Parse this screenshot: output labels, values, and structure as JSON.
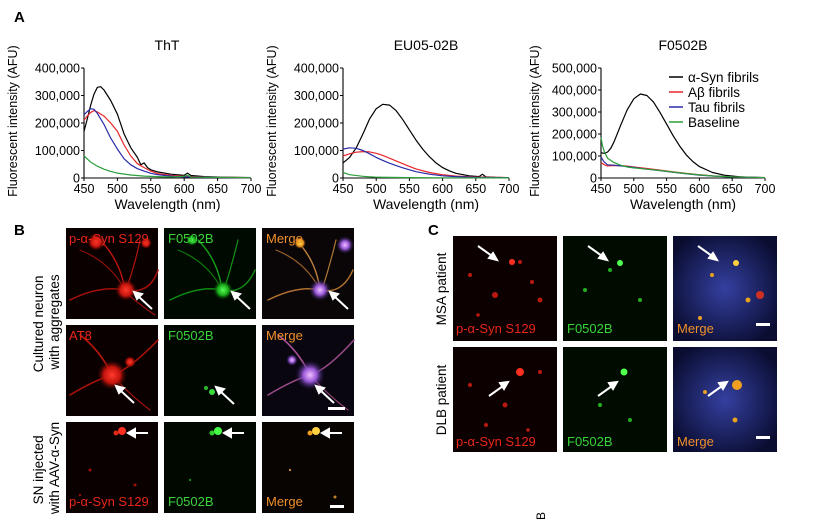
{
  "figure": {
    "panel_labels": {
      "a": "A",
      "b": "B",
      "c": "C",
      "stray": "B"
    },
    "legend": [
      {
        "label": "α-Syn fibrils",
        "color": "#000000"
      },
      {
        "label": "Aβ fibrils",
        "color": "#e8262a"
      },
      {
        "label": "Tau fibrils",
        "color": "#2a2aaa"
      },
      {
        "label": "Baseline",
        "color": "#2c9e3a"
      }
    ],
    "panel_b": {
      "row_label_1": "Cultured neuron with aggregates",
      "row_label_2": "SN injected with AAV-α-Syn",
      "rows": [
        [
          "p-α-Syn S129",
          "F0502B",
          "Merge"
        ],
        [
          "AT8",
          "F0502B",
          "Merge"
        ],
        [
          "p-α-Syn S129",
          "F0502B",
          "Merge"
        ]
      ]
    },
    "panel_c": {
      "rows": [
        {
          "patient": "MSA patient",
          "labels": [
            "p-α-Syn S129",
            "F0502B",
            "Merge"
          ]
        },
        {
          "patient": "DLB patient",
          "labels": [
            "p-α-Syn S129",
            "F0502B",
            "Merge"
          ]
        }
      ]
    }
  },
  "chart_data": [
    {
      "type": "line",
      "title": "ThT",
      "xlabel": "Wavelength (nm)",
      "ylabel": "Fluorescent intensity (AFU)",
      "xlim": [
        450,
        700
      ],
      "ylim": [
        0,
        400000
      ],
      "xticks": [
        450,
        500,
        550,
        600,
        650,
        700
      ],
      "yticks": [
        0,
        100000,
        200000,
        300000,
        400000
      ],
      "ytick_labels": [
        "0",
        "100,000",
        "200,000",
        "300,000",
        "400,000"
      ],
      "series": [
        {
          "name": "α-Syn fibrils",
          "color": "#000000",
          "points": [
            [
              450,
              170000
            ],
            [
              455,
              215000
            ],
            [
              460,
              265000
            ],
            [
              465,
              305000
            ],
            [
              470,
              330000
            ],
            [
              475,
              332000
            ],
            [
              480,
              320000
            ],
            [
              490,
              282000
            ],
            [
              500,
              232000
            ],
            [
              510,
              160000
            ],
            [
              520,
              110000
            ],
            [
              530,
              75000
            ],
            [
              535,
              48000
            ],
            [
              540,
              55000
            ],
            [
              545,
              38000
            ],
            [
              550,
              30000
            ],
            [
              560,
              22000
            ],
            [
              580,
              14000
            ],
            [
              600,
              10000
            ],
            [
              605,
              18000
            ],
            [
              610,
              9000
            ],
            [
              630,
              5000
            ],
            [
              660,
              3000
            ],
            [
              700,
              1500
            ]
          ]
        },
        {
          "name": "Aβ fibrils",
          "color": "#e8262a",
          "points": [
            [
              450,
              210000
            ],
            [
              455,
              226000
            ],
            [
              460,
              238000
            ],
            [
              465,
              245000
            ],
            [
              470,
              240000
            ],
            [
              480,
              225000
            ],
            [
              490,
              200000
            ],
            [
              500,
              170000
            ],
            [
              510,
              120000
            ],
            [
              520,
              80000
            ],
            [
              530,
              52000
            ],
            [
              540,
              38000
            ],
            [
              550,
              25000
            ],
            [
              560,
              16000
            ],
            [
              580,
              10000
            ],
            [
              600,
              6000
            ],
            [
              640,
              3000
            ],
            [
              700,
              1500
            ]
          ]
        },
        {
          "name": "Tau fibrils",
          "color": "#2a2aaa",
          "points": [
            [
              450,
              230000
            ],
            [
              455,
              242000
            ],
            [
              460,
              252000
            ],
            [
              465,
              250000
            ],
            [
              470,
              235000
            ],
            [
              480,
              195000
            ],
            [
              490,
              145000
            ],
            [
              500,
              105000
            ],
            [
              510,
              70000
            ],
            [
              520,
              48000
            ],
            [
              530,
              34000
            ],
            [
              540,
              25000
            ],
            [
              550,
              17000
            ],
            [
              560,
              12000
            ],
            [
              580,
              7000
            ],
            [
              600,
              4000
            ],
            [
              640,
              2000
            ],
            [
              700,
              1000
            ]
          ]
        },
        {
          "name": "Baseline",
          "color": "#2c9e3a",
          "points": [
            [
              450,
              80000
            ],
            [
              460,
              58000
            ],
            [
              470,
              43000
            ],
            [
              480,
              32000
            ],
            [
              490,
              24000
            ],
            [
              500,
              18000
            ],
            [
              520,
              11000
            ],
            [
              540,
              7000
            ],
            [
              560,
              5000
            ],
            [
              580,
              3500
            ],
            [
              600,
              6000
            ],
            [
              605,
              10000
            ],
            [
              610,
              3000
            ],
            [
              650,
              2000
            ],
            [
              700,
              1000
            ]
          ]
        }
      ]
    },
    {
      "type": "line",
      "title": "EU05-02B",
      "xlabel": "Wavelength (nm)",
      "ylabel": "Fluorescent intensity (AFU)",
      "xlim": [
        450,
        700
      ],
      "ylim": [
        0,
        400000
      ],
      "xticks": [
        450,
        500,
        550,
        600,
        650,
        700
      ],
      "yticks": [
        0,
        100000,
        200000,
        300000,
        400000
      ],
      "ytick_labels": [
        "0",
        "100,000",
        "200,000",
        "300,000",
        "400,000"
      ],
      "series": [
        {
          "name": "α-Syn fibrils",
          "color": "#000000",
          "points": [
            [
              450,
              55000
            ],
            [
              460,
              75000
            ],
            [
              470,
              110000
            ],
            [
              480,
              160000
            ],
            [
              490,
              215000
            ],
            [
              500,
              252000
            ],
            [
              510,
              268000
            ],
            [
              520,
              265000
            ],
            [
              530,
              245000
            ],
            [
              540,
              212000
            ],
            [
              550,
              175000
            ],
            [
              560,
              138000
            ],
            [
              570,
              105000
            ],
            [
              580,
              78000
            ],
            [
              590,
              55000
            ],
            [
              600,
              38000
            ],
            [
              610,
              26000
            ],
            [
              620,
              17000
            ],
            [
              640,
              8000
            ],
            [
              655,
              5000
            ],
            [
              660,
              14000
            ],
            [
              665,
              4000
            ],
            [
              680,
              2000
            ],
            [
              700,
              1000
            ]
          ]
        },
        {
          "name": "Aβ fibrils",
          "color": "#e8262a",
          "points": [
            [
              450,
              80000
            ],
            [
              460,
              88000
            ],
            [
              470,
              94000
            ],
            [
              480,
              96000
            ],
            [
              490,
              95000
            ],
            [
              500,
              90000
            ],
            [
              510,
              82000
            ],
            [
              520,
              72000
            ],
            [
              530,
              62000
            ],
            [
              540,
              52000
            ],
            [
              550,
              42000
            ],
            [
              560,
              33000
            ],
            [
              580,
              20000
            ],
            [
              600,
              12000
            ],
            [
              620,
              7000
            ],
            [
              650,
              3500
            ],
            [
              700,
              1500
            ]
          ]
        },
        {
          "name": "Tau fibrils",
          "color": "#2a2aaa",
          "points": [
            [
              450,
              105000
            ],
            [
              460,
              110000
            ],
            [
              470,
              108000
            ],
            [
              480,
              100000
            ],
            [
              490,
              88000
            ],
            [
              500,
              75000
            ],
            [
              510,
              64000
            ],
            [
              520,
              54000
            ],
            [
              530,
              45000
            ],
            [
              540,
              37000
            ],
            [
              550,
              30000
            ],
            [
              560,
              23000
            ],
            [
              580,
              14000
            ],
            [
              600,
              8000
            ],
            [
              620,
              5000
            ],
            [
              650,
              2500
            ],
            [
              700,
              1000
            ]
          ]
        },
        {
          "name": "Baseline",
          "color": "#2c9e3a",
          "points": [
            [
              450,
              20000
            ],
            [
              460,
              12000
            ],
            [
              480,
              6000
            ],
            [
              500,
              3000
            ],
            [
              550,
              1500
            ],
            [
              600,
              800
            ],
            [
              700,
              500
            ]
          ]
        }
      ]
    },
    {
      "type": "line",
      "title": "F0502B",
      "xlabel": "Wavelength (nm)",
      "ylabel": "Fluorescent intensity (AFU)",
      "xlim": [
        450,
        700
      ],
      "ylim": [
        0,
        500000
      ],
      "xticks": [
        450,
        500,
        550,
        600,
        650,
        700
      ],
      "yticks": [
        0,
        100000,
        200000,
        300000,
        400000,
        500000
      ],
      "ytick_labels": [
        "0",
        "100,000",
        "200,000",
        "300,000",
        "400,000",
        "500,000"
      ],
      "series": [
        {
          "name": "α-Syn fibrils",
          "color": "#000000",
          "points": [
            [
              450,
              115000
            ],
            [
              455,
              112000
            ],
            [
              460,
              118000
            ],
            [
              465,
              135000
            ],
            [
              470,
              165000
            ],
            [
              480,
              240000
            ],
            [
              490,
              310000
            ],
            [
              500,
              360000
            ],
            [
              510,
              382000
            ],
            [
              520,
              375000
            ],
            [
              530,
              345000
            ],
            [
              540,
              298000
            ],
            [
              550,
              245000
            ],
            [
              560,
              192000
            ],
            [
              570,
              145000
            ],
            [
              580,
              105000
            ],
            [
              590,
              75000
            ],
            [
              600,
              52000
            ],
            [
              620,
              25000
            ],
            [
              640,
              12000
            ],
            [
              660,
              6000
            ],
            [
              680,
              3000
            ],
            [
              700,
              1500
            ]
          ]
        },
        {
          "name": "Aβ fibrils",
          "color": "#e8262a",
          "points": [
            [
              450,
              70000
            ],
            [
              455,
              60000
            ],
            [
              460,
              55000
            ],
            [
              470,
              57000
            ],
            [
              480,
              56000
            ],
            [
              490,
              54000
            ],
            [
              500,
              50000
            ],
            [
              520,
              43000
            ],
            [
              540,
              36000
            ],
            [
              560,
              28000
            ],
            [
              580,
              21000
            ],
            [
              600,
              15000
            ],
            [
              620,
              10000
            ],
            [
              650,
              5000
            ],
            [
              700,
              2000
            ]
          ]
        },
        {
          "name": "Tau fibrils",
          "color": "#2a2aaa",
          "points": [
            [
              450,
              95000
            ],
            [
              455,
              72000
            ],
            [
              460,
              60000
            ],
            [
              470,
              58000
            ],
            [
              480,
              55000
            ],
            [
              490,
              52000
            ],
            [
              500,
              48000
            ],
            [
              520,
              40000
            ],
            [
              540,
              33000
            ],
            [
              560,
              26000
            ],
            [
              580,
              19000
            ],
            [
              600,
              13000
            ],
            [
              620,
              9000
            ],
            [
              650,
              4500
            ],
            [
              700,
              2000
            ]
          ]
        },
        {
          "name": "Baseline",
          "color": "#2c9e3a",
          "points": [
            [
              450,
              185000
            ],
            [
              452,
              150000
            ],
            [
              455,
              120000
            ],
            [
              460,
              90000
            ],
            [
              470,
              70000
            ],
            [
              480,
              58000
            ],
            [
              490,
              50000
            ],
            [
              500,
              46000
            ],
            [
              520,
              40000
            ],
            [
              540,
              34000
            ],
            [
              560,
              27000
            ],
            [
              580,
              20000
            ],
            [
              600,
              14000
            ],
            [
              620,
              9000
            ],
            [
              650,
              5000
            ],
            [
              700,
              2000
            ]
          ]
        }
      ]
    }
  ]
}
